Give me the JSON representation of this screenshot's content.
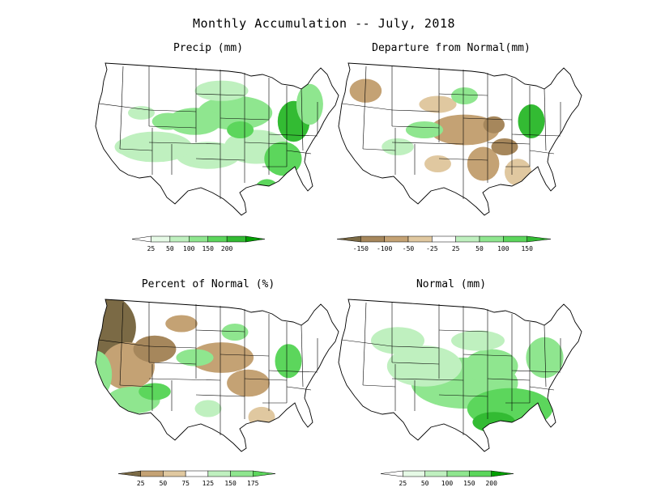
{
  "title": "Monthly Accumulation -- July, 2018",
  "colors": {
    "green1": "#e6fae6",
    "green2": "#bff0bf",
    "green3": "#8fe68f",
    "green4": "#5cd65c",
    "green5": "#33bb33",
    "green6": "#00a000",
    "brown1": "#e0c8a0",
    "brown2": "#c4a274",
    "brown3": "#a6875c",
    "brown4": "#7b6a45",
    "outline": "#000000"
  },
  "panels": [
    {
      "id": "precip",
      "title": "Precip (mm)",
      "legend": {
        "labels": [
          "25",
          "50",
          "100",
          "150",
          "200"
        ],
        "has_low_end": true
      }
    },
    {
      "id": "departure",
      "title": "Departure from Normal(mm)",
      "legend": {
        "labels": [
          "-150",
          "-100",
          "-50",
          "-25",
          "25",
          "50",
          "100",
          "150"
        ],
        "has_low_end": false
      }
    },
    {
      "id": "percent",
      "title": "Percent of Normal (%)",
      "legend": {
        "labels": [
          "25",
          "50",
          "75",
          "125",
          "150",
          "175"
        ],
        "has_low_end": false
      }
    },
    {
      "id": "normal",
      "title": "Normal (mm)",
      "legend": {
        "labels": [
          "25",
          "50",
          "100",
          "150",
          "200"
        ],
        "has_low_end": true
      }
    }
  ]
}
